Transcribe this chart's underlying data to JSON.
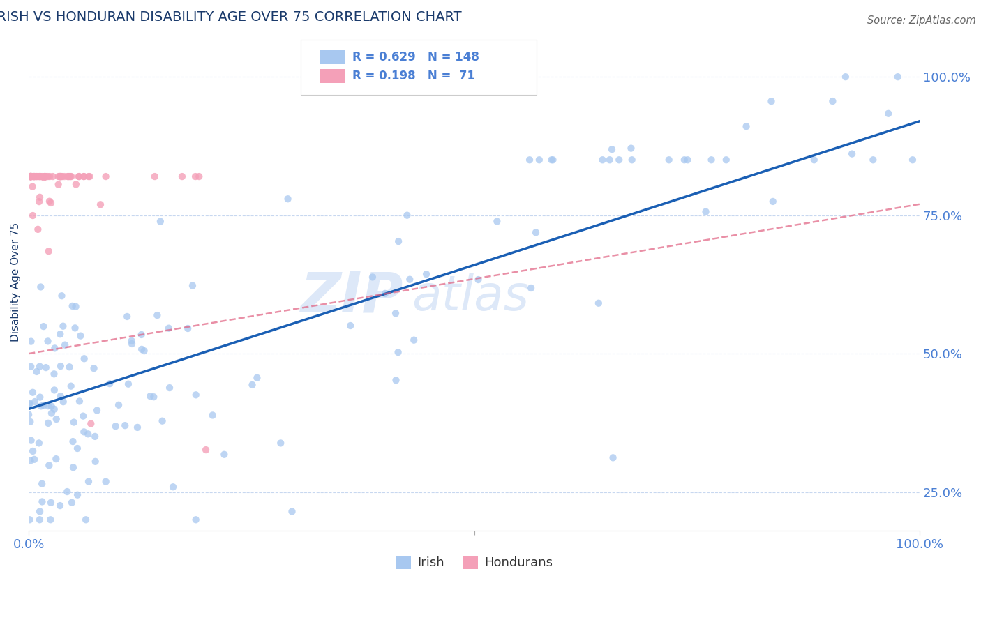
{
  "title": "IRISH VS HONDURAN DISABILITY AGE OVER 75 CORRELATION CHART",
  "source": "Source: ZipAtlas.com",
  "ylabel": "Disability Age Over 75",
  "xlim": [
    0.0,
    1.0
  ],
  "ylim": [
    0.18,
    1.08
  ],
  "yticks": [
    0.25,
    0.5,
    0.75,
    1.0
  ],
  "ytick_labels": [
    "25.0%",
    "50.0%",
    "75.0%",
    "100.0%"
  ],
  "irish_R": 0.629,
  "irish_N": 148,
  "honduran_R": 0.198,
  "honduran_N": 71,
  "irish_color": "#a8c8f0",
  "honduran_color": "#f4a0b8",
  "irish_line_color": "#1a5fb4",
  "honduran_line_color": "#e06080",
  "title_color": "#1a3a6b",
  "axis_color": "#4a7fd4",
  "grid_color": "#c8d8f0",
  "watermark_color": "#dde8f8",
  "legend_box_color": "#cccccc",
  "source_color": "#666666"
}
